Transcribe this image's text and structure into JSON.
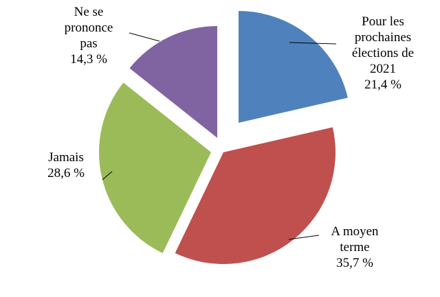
{
  "chart_data": {
    "type": "pie",
    "exploded": true,
    "start": "top, clockwise",
    "slices": [
      {
        "label": "Pour les\nprochaines\nélections de\n2021",
        "value": 21.4,
        "value_text": "21,4 %",
        "color": "#4F81BD"
      },
      {
        "label": "A moyen\nterme",
        "value": 35.7,
        "value_text": "35,7 %",
        "color": "#C0504D"
      },
      {
        "label": "Jamais",
        "value": 28.6,
        "value_text": "28,6 %",
        "color": "#9BBB59"
      },
      {
        "label": "Ne se\nprononce\npas",
        "value": 14.3,
        "value_text": "14,3 %",
        "color": "#8064A2"
      }
    ]
  }
}
